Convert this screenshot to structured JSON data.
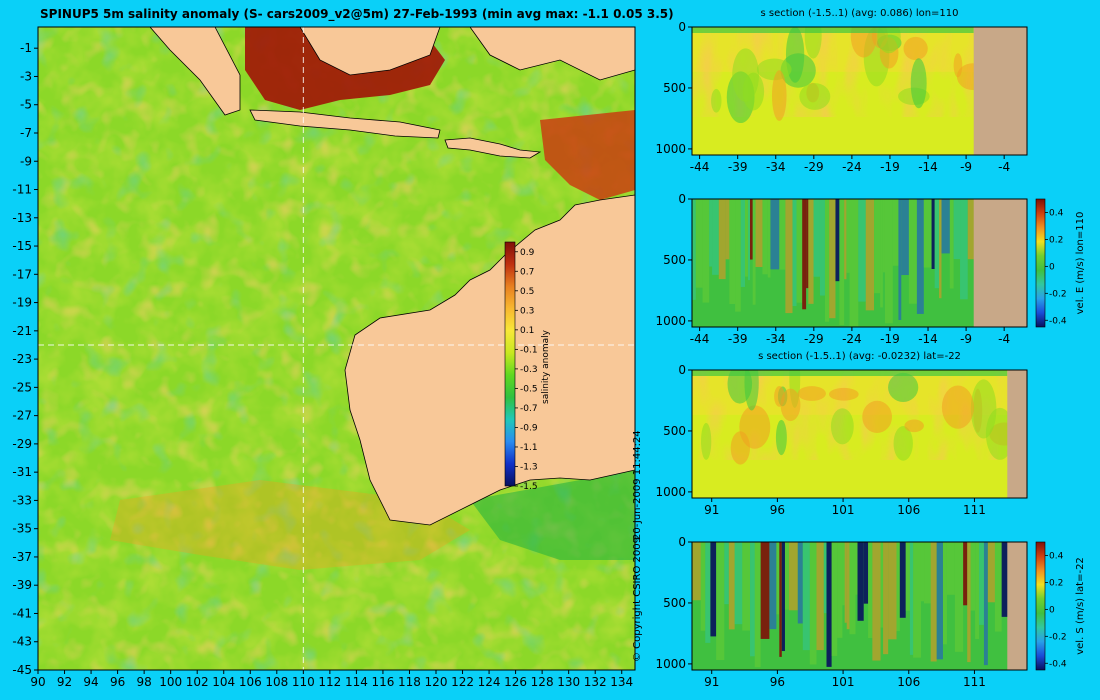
{
  "colors": {
    "background": "#0ad0f8",
    "land": "#f8c898",
    "section_land": "#c8a888",
    "anomaly_colormap": [
      "#08105e",
      "#1030c8",
      "#2a8cf0",
      "#20c8b8",
      "#30c040",
      "#60d820",
      "#c8e820",
      "#f8e838",
      "#f8b830",
      "#e88020",
      "#c03010",
      "#801008"
    ],
    "velocity_colormap": [
      "#08105e",
      "#1a4cd8",
      "#28a0e8",
      "#30c8a0",
      "#40c040",
      "#70d030",
      "#f0e020",
      "#f09020",
      "#d04010",
      "#801008"
    ]
  },
  "chart_data": [
    {
      "id": "map",
      "type": "heatmap",
      "title": "SPINUP5 5m salinity anomaly (S- cars2009_v2@5m) 27-Feb-1993 (min avg max: -1.1 0.05 3.5)",
      "x_ticks": [
        90,
        92,
        94,
        96,
        98,
        100,
        102,
        104,
        106,
        108,
        110,
        112,
        114,
        116,
        118,
        120,
        122,
        124,
        126,
        128,
        130,
        132,
        134
      ],
      "y_ticks": [
        -1,
        -3,
        -5,
        -7,
        -9,
        -11,
        -13,
        -15,
        -17,
        -19,
        -21,
        -23,
        -25,
        -27,
        -29,
        -31,
        -33,
        -35,
        -37,
        -39,
        -41,
        -43,
        -45
      ],
      "xlim": [
        90,
        135
      ],
      "ylim": [
        -45,
        0.5
      ],
      "reference_lines": {
        "lon": 110,
        "lat": -22
      },
      "stats": {
        "min": -1.1,
        "avg": 0.05,
        "max": 3.5
      },
      "colorbar": {
        "label": "salinity anomaly",
        "ticks": [
          0.9,
          0.7,
          0.5,
          0.3,
          0.1,
          -0.1,
          -0.3,
          -0.5,
          -0.7,
          -0.9,
          -1.1,
          -1.3,
          -1.5
        ],
        "range": [
          -1.5,
          1.0
        ]
      }
    },
    {
      "id": "s-section-lon",
      "type": "heatmap",
      "title": "s section (-1.5..1) (avg: 0.086) lon=110",
      "x_ticks": [
        "-44",
        "-39",
        "-34",
        "-29",
        "-24",
        "-19",
        "-14",
        "-9",
        "-4"
      ],
      "y_ticks": [
        "0",
        "500",
        "1000"
      ],
      "xlim": [
        -45,
        -1
      ],
      "ylim": [
        1050,
        0
      ],
      "land_from_x": -8
    },
    {
      "id": "u-section-lon",
      "type": "heatmap",
      "title": "",
      "x_ticks": [
        "-44",
        "-39",
        "-34",
        "-29",
        "-24",
        "-19",
        "-14",
        "-9",
        "-4"
      ],
      "y_ticks": [
        "0",
        "500",
        "1000"
      ],
      "xlim": [
        -45,
        -1
      ],
      "ylim": [
        1050,
        0
      ],
      "land_from_x": -8,
      "side_label": "vel. E (m/s) lon=110",
      "colorbar": {
        "ticks": [
          "0.4",
          "0.2",
          "0",
          "-0.2",
          "-0.4"
        ],
        "range": [
          -0.45,
          0.5
        ]
      }
    },
    {
      "id": "s-section-lat",
      "type": "heatmap",
      "title": "s section (-1.5..1) (avg: -0.0232) lat=-22",
      "x_ticks": [
        "91",
        "96",
        "101",
        "106",
        "111"
      ],
      "y_ticks": [
        "0",
        "500",
        "1000"
      ],
      "xlim": [
        89.5,
        115
      ],
      "ylim": [
        1050,
        0
      ],
      "land_from_x": 113.5
    },
    {
      "id": "v-section-lat",
      "type": "heatmap",
      "title": "",
      "x_ticks": [
        "91",
        "96",
        "101",
        "106",
        "111"
      ],
      "y_ticks": [
        "0",
        "500",
        "1000"
      ],
      "xlim": [
        89.5,
        115
      ],
      "ylim": [
        1050,
        0
      ],
      "land_from_x": 113.5,
      "side_label": "vel. S (m/s) lat=-22",
      "colorbar": {
        "ticks": [
          "0.4",
          "0.2",
          "0",
          "-0.2",
          "-0.4"
        ],
        "range": [
          -0.45,
          0.5
        ]
      }
    }
  ],
  "credit": {
    "copyright": "© Copyright CSIRO 2009",
    "timestamp": "20-Jun-2009 11:44:24"
  }
}
